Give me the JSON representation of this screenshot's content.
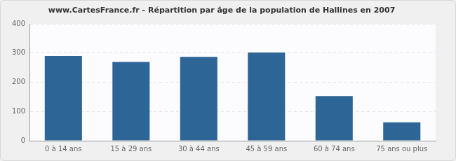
{
  "chart_data": {
    "type": "bar",
    "title": "www.CartesFrance.fr - Répartition par âge de la population de Hallines en 2007",
    "categories": [
      "0 à 14 ans",
      "15 à 29 ans",
      "30 à 44 ans",
      "45 à 59 ans",
      "60 à 74 ans",
      "75 ans ou plus"
    ],
    "values": [
      290,
      270,
      287,
      302,
      153,
      63
    ],
    "color": "#2e6597",
    "ylim": [
      0,
      400
    ],
    "yticks": [
      0,
      100,
      200,
      300,
      400
    ],
    "grid": true
  }
}
